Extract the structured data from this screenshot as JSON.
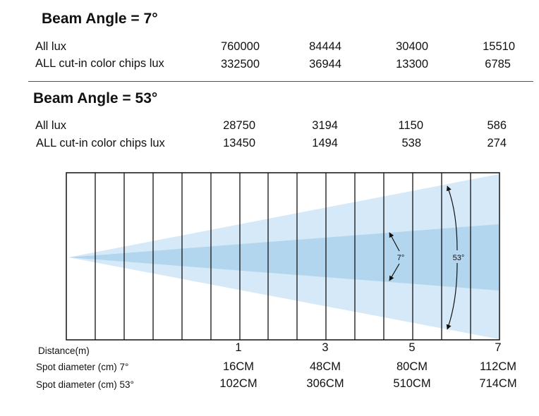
{
  "section1": {
    "title": "Beam Angle = 7°",
    "rows": [
      {
        "label": "All lux",
        "values": [
          "760000",
          "84444",
          "30400",
          "15510"
        ]
      },
      {
        "label": "ALL cut-in color chips lux",
        "values": [
          "332500",
          "36944",
          "13300",
          "6785"
        ]
      }
    ]
  },
  "section2": {
    "title": "Beam Angle = 53°",
    "rows": [
      {
        "label": "All lux",
        "values": [
          "28750",
          "3194",
          "1150",
          "586"
        ]
      },
      {
        "label": "ALL cut-in color chips lux",
        "values": [
          "13450",
          "1494",
          "538",
          "274"
        ]
      }
    ]
  },
  "diagram": {
    "angle_small": "7°",
    "angle_large": "53°",
    "colors": {
      "outer_beam": "#d6e9f8",
      "inner_beam": "#b3d6ef",
      "grid": "#111111"
    }
  },
  "bottom": {
    "distance_label": "Distance(m)",
    "distances": [
      "1",
      "3",
      "5",
      "7"
    ],
    "spot7_label": "Spot diameter (cm) 7°",
    "spot7_values": [
      "16CM",
      "48CM",
      "80CM",
      "112CM"
    ],
    "spot53_label": "Spot diameter (cm) 53°",
    "spot53_values": [
      "102CM",
      "306CM",
      "510CM",
      "714CM"
    ]
  }
}
